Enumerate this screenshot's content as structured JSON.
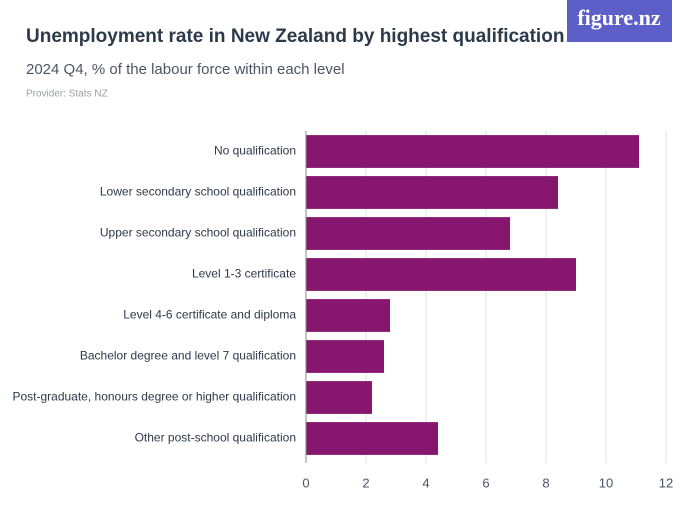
{
  "brand": "figure.nz",
  "chart_data": {
    "type": "hbar",
    "title": "Unemployment rate in New Zealand by highest qualification",
    "subtitle": "2024 Q4, % of the labour force within each level",
    "provider": "Provider: Stats NZ",
    "categories": [
      "No qualification",
      "Lower secondary school qualification",
      "Upper secondary school qualification",
      "Level 1-3 certificate",
      "Level 4-6 certificate and diploma",
      "Bachelor degree and level 7 qualification",
      "Post-graduate, honours degree or higher qualification",
      "Other post-school qualification"
    ],
    "values": [
      11.1,
      8.4,
      6.8,
      9.0,
      2.8,
      2.6,
      2.2,
      4.4
    ],
    "color": "#86166e",
    "xlim": [
      0,
      12
    ],
    "xticks": [
      0,
      2,
      4,
      6,
      8,
      10,
      12
    ],
    "grid": true
  }
}
